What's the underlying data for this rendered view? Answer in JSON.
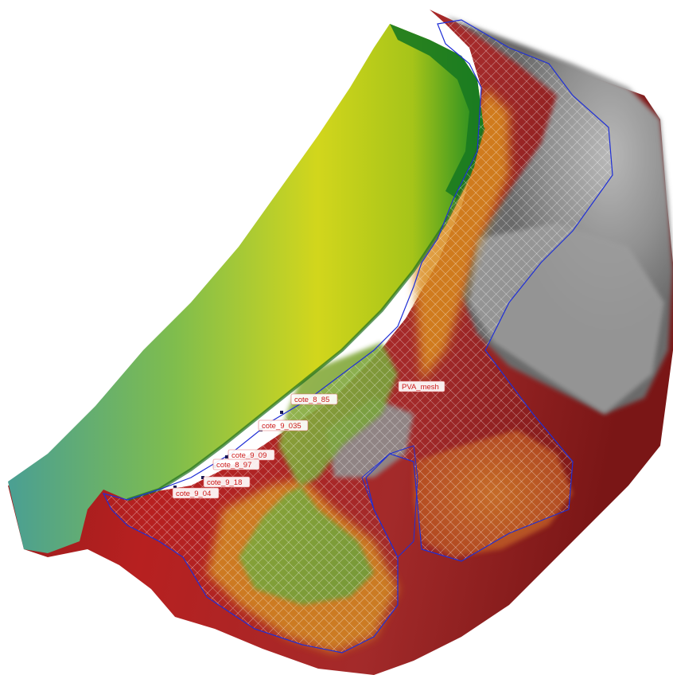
{
  "map": {
    "layer_style": {
      "terrain_low_color": "#b51d1d",
      "terrain_mid_color": "#e0a21e",
      "terrain_hillshade_color": "#8e8e8e",
      "channel_high_color": "#5aa88a",
      "channel_mid_color": "#c8d31a",
      "channel_low_color": "#1f8f1f",
      "mesh_outline_color": "#1f2fd6",
      "mesh_grid_color": "#ffffff",
      "label_text_color": "#cc1a1a"
    },
    "mesh_label": "PVA_mesh",
    "elevation_labels": [
      "cote_8_85",
      "cote_9_035",
      "cote_9_09",
      "cote_8_97",
      "cote_9_18",
      "cote_9_04"
    ]
  }
}
